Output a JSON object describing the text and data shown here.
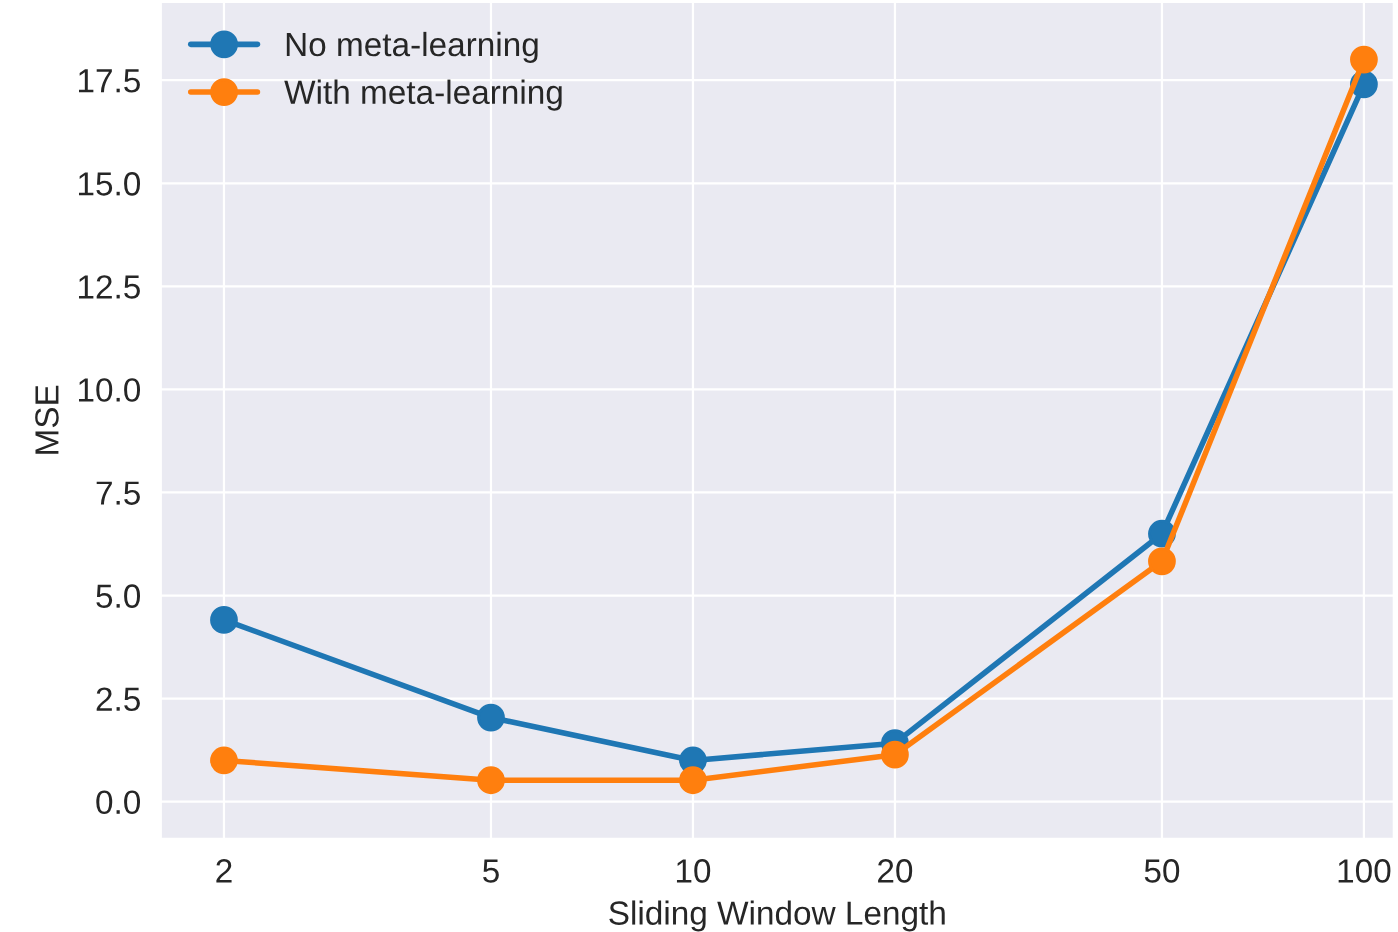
{
  "chart_data": {
    "type": "line",
    "xlabel": "Sliding Window Length",
    "ylabel": "MSE",
    "x": [
      2,
      5,
      10,
      20,
      50,
      100
    ],
    "series": [
      {
        "name": "No meta-learning",
        "color": "#1f77b4",
        "values": [
          4.41,
          2.04,
          1.0,
          1.42,
          6.5,
          17.4
        ]
      },
      {
        "name": "With meta-learning",
        "color": "#ff7f0e",
        "values": [
          1.0,
          0.52,
          0.52,
          1.14,
          5.83,
          18.0
        ]
      }
    ],
    "log": "x",
    "xlim": [
      1.61,
      110.8
    ],
    "xticks": [
      2,
      5,
      10,
      20,
      50,
      100
    ],
    "ylim": [
      -0.9,
      19.4
    ],
    "yticks": [
      {
        "value": 0,
        "label": "0.0"
      },
      {
        "value": 2.5,
        "label": "2.5"
      },
      {
        "value": 5,
        "label": "5.0"
      },
      {
        "value": 7.5,
        "label": "7.5"
      },
      {
        "value": 10,
        "label": "10.0"
      },
      {
        "value": 12.5,
        "label": "12.5"
      },
      {
        "value": 15,
        "label": "15.0"
      },
      {
        "value": 17.5,
        "label": "17.5"
      }
    ],
    "grid": true,
    "legend": "top left",
    "marker": "circle",
    "line_style": "solid"
  }
}
